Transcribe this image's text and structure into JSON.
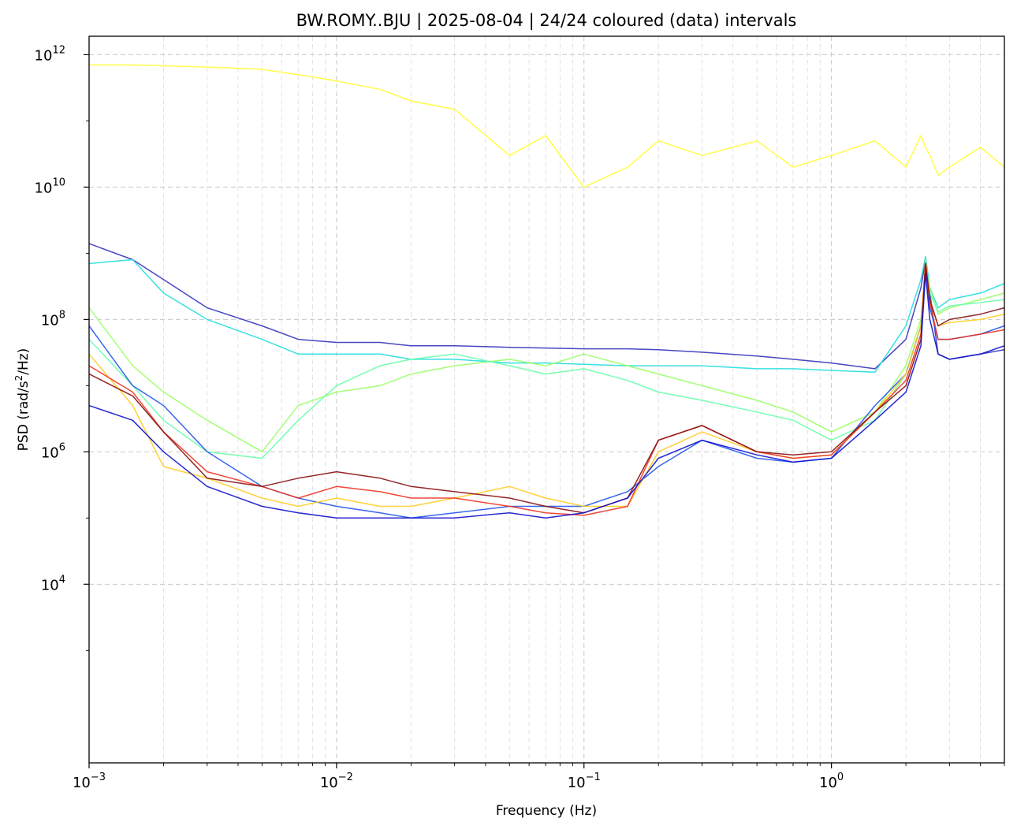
{
  "chart_data": {
    "type": "line",
    "title": "BW.ROMY..BJU | 2025-08-04 | 24/24 coloured (data) intervals",
    "xlabel": "Frequency (Hz)",
    "ylabel_main": "PSD (rad/s",
    "ylabel_sup": "2",
    "ylabel_end": "/Hz)",
    "x_scale": "log",
    "y_scale": "log",
    "xlim": [
      0.001,
      5.0
    ],
    "ylim": [
      20,
      1900000000000.0
    ],
    "grid": true,
    "legend": "none",
    "x_ticks": [
      {
        "value": 0.001,
        "base": "10",
        "exp": "−3"
      },
      {
        "value": 0.01,
        "base": "10",
        "exp": "−2"
      },
      {
        "value": 0.1,
        "base": "10",
        "exp": "−1"
      },
      {
        "value": 1,
        "base": "10",
        "exp": "0"
      }
    ],
    "y_ticks": [
      {
        "value": 10000,
        "base": "10",
        "exp": "4"
      },
      {
        "value": 1000000,
        "base": "10",
        "exp": "6"
      },
      {
        "value": 100000000,
        "base": "10",
        "exp": "8"
      },
      {
        "value": 10000000000,
        "base": "10",
        "exp": "10"
      },
      {
        "value": 1000000000000,
        "base": "10",
        "exp": "12"
      }
    ],
    "x": [
      0.001,
      0.0015,
      0.002,
      0.003,
      0.005,
      0.007,
      0.01,
      0.015,
      0.02,
      0.03,
      0.05,
      0.07,
      0.1,
      0.15,
      0.2,
      0.3,
      0.5,
      0.7,
      1.0,
      1.5,
      2.0,
      2.3,
      2.4,
      2.5,
      2.7,
      3.0,
      4.0,
      5.0
    ],
    "series": [
      {
        "color": "#ffff33",
        "values": [
          700000000000.0,
          700000000000.0,
          680000000000.0,
          650000000000.0,
          600000000000.0,
          500000000000.0,
          400000000000.0,
          300000000000.0,
          200000000000.0,
          150000000000.0,
          30000000000.0,
          60000000000.0,
          10000000000.0,
          20000000000.0,
          50000000000.0,
          30000000000.0,
          50000000000.0,
          20000000000.0,
          30000000000.0,
          50000000000.0,
          20000000000.0,
          60000000000.0,
          40000000000.0,
          30000000000.0,
          15000000000.0,
          20000000000.0,
          40000000000.0,
          20000000000.0
        ]
      },
      {
        "color": "#3333bb",
        "values": [
          1400000000.0,
          800000000.0,
          400000000.0,
          150000000.0,
          80000000.0,
          50000000.0,
          45000000.0,
          45000000.0,
          40000000.0,
          40000000.0,
          38000000.0,
          37000000.0,
          36000000.0,
          36000000.0,
          35000000.0,
          32000000.0,
          28000000.0,
          25000000.0,
          22000000.0,
          18000000.0,
          50000000.0,
          300000000.0,
          800000000.0,
          250000000.0,
          30000000.0,
          25000000.0,
          30000000.0,
          35000000.0
        ]
      },
      {
        "color": "#22dddd",
        "values": [
          700000000.0,
          800000000.0,
          250000000.0,
          100000000.0,
          50000000.0,
          30000000.0,
          30000000.0,
          30000000.0,
          25000000.0,
          25000000.0,
          22000000.0,
          22000000.0,
          21000000.0,
          20000000.0,
          20000000.0,
          20000000.0,
          18000000.0,
          18000000.0,
          17000000.0,
          16000000.0,
          80000000.0,
          400000000.0,
          900000000.0,
          300000000.0,
          150000000.0,
          200000000.0,
          250000000.0,
          350000000.0
        ]
      },
      {
        "color": "#99ff66",
        "values": [
          150000000.0,
          20000000.0,
          8000000.0,
          3000000.0,
          1000000.0,
          5000000.0,
          8000000.0,
          10000000.0,
          15000000.0,
          20000000.0,
          25000000.0,
          20000000.0,
          30000000.0,
          20000000.0,
          15000000.0,
          10000000.0,
          6000000.0,
          4000000.0,
          2000000.0,
          4000000.0,
          20000000.0,
          100000000.0,
          600000000.0,
          300000000.0,
          120000000.0,
          150000000.0,
          200000000.0,
          250000000.0
        ]
      },
      {
        "color": "#66ffaa",
        "values": [
          50000000.0,
          10000000.0,
          3000000.0,
          1000000.0,
          800000.0,
          3000000.0,
          10000000.0,
          20000000.0,
          25000000.0,
          30000000.0,
          20000000.0,
          15000000.0,
          18000000.0,
          12000000.0,
          8000000.0,
          6000000.0,
          4000000.0,
          3000000.0,
          1500000.0,
          3000000.0,
          15000000.0,
          80000000.0,
          700000000.0,
          250000000.0,
          130000000.0,
          160000000.0,
          180000000.0,
          200000000.0
        ]
      },
      {
        "color": "#2255ee",
        "values": [
          80000000.0,
          10000000.0,
          5000000.0,
          1000000.0,
          300000.0,
          200000.0,
          150000.0,
          120000.0,
          100000.0,
          120000.0,
          150000.0,
          150000.0,
          150000.0,
          250000.0,
          600000.0,
          1500000.0,
          800000.0,
          700000.0,
          800000.0,
          5000000.0,
          15000000.0,
          80000000.0,
          600000000.0,
          150000000.0,
          50000000.0,
          50000000.0,
          60000000.0,
          80000000.0
        ]
      },
      {
        "color": "#ffcc22",
        "values": [
          30000000.0,
          5000000.0,
          600000.0,
          400000.0,
          200000.0,
          150000.0,
          200000.0,
          150000.0,
          150000.0,
          200000.0,
          300000.0,
          200000.0,
          150000.0,
          150000.0,
          1000000.0,
          2000000.0,
          1000000.0,
          800000.0,
          900000.0,
          4000000.0,
          15000000.0,
          80000000.0,
          800000000.0,
          200000000.0,
          80000000.0,
          90000000.0,
          100000000.0,
          120000000.0
        ]
      },
      {
        "color": "#ee3322",
        "values": [
          20000000.0,
          8000000.0,
          2000000.0,
          500000.0,
          300000.0,
          200000.0,
          300000.0,
          250000.0,
          200000.0,
          200000.0,
          150000.0,
          120000.0,
          110000.0,
          150000.0,
          1500000.0,
          2500000.0,
          1000000.0,
          800000.0,
          900000.0,
          4000000.0,
          12000000.0,
          60000000.0,
          700000000.0,
          180000000.0,
          50000000.0,
          50000000.0,
          60000000.0,
          70000000.0
        ]
      },
      {
        "color": "#881111",
        "values": [
          15000000.0,
          7000000.0,
          2000000.0,
          400000.0,
          300000.0,
          400000.0,
          500000.0,
          400000.0,
          300000.0,
          250000.0,
          200000.0,
          150000.0,
          120000.0,
          200000.0,
          1500000.0,
          2500000.0,
          1000000.0,
          900000.0,
          1000000.0,
          4000000.0,
          10000000.0,
          50000000.0,
          700000000.0,
          200000000.0,
          80000000.0,
          100000000.0,
          120000000.0,
          150000000.0
        ]
      },
      {
        "color": "#1111cc",
        "values": [
          5000000.0,
          3000000.0,
          1000000.0,
          300000.0,
          150000.0,
          120000.0,
          100000.0,
          100000.0,
          100000.0,
          100000.0,
          120000.0,
          100000.0,
          120000.0,
          200000.0,
          800000.0,
          1500000.0,
          900000.0,
          700000.0,
          800000.0,
          3000000.0,
          8000000.0,
          40000000.0,
          500000000.0,
          100000000.0,
          30000000.0,
          25000000.0,
          30000000.0,
          40000000.0
        ]
      }
    ]
  }
}
